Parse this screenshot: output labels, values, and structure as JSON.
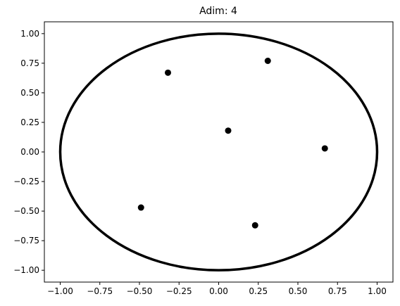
{
  "chart_data": {
    "type": "scatter",
    "title": "Adim: 4",
    "x": [
      0.31,
      -0.32,
      0.06,
      0.67,
      -0.49,
      0.23
    ],
    "values": [
      0.77,
      0.67,
      0.18,
      0.03,
      -0.47,
      -0.62
    ],
    "color": "#000000",
    "shapes": [
      {
        "type": "circle",
        "center": [
          0,
          0
        ],
        "radius": 1,
        "color": "#000000"
      }
    ],
    "xlim": [
      -1.1,
      1.1
    ],
    "ylim": [
      -1.1,
      1.1
    ],
    "xticks": [
      {
        "value": -1,
        "label": "−1.00"
      },
      {
        "value": -0.75,
        "label": "−0.75"
      },
      {
        "value": -0.5,
        "label": "−0.50"
      },
      {
        "value": -0.25,
        "label": "−0.25"
      },
      {
        "value": 0,
        "label": "0.00"
      },
      {
        "value": 0.25,
        "label": "0.25"
      },
      {
        "value": 0.5,
        "label": "0.50"
      },
      {
        "value": 0.75,
        "label": "0.75"
      },
      {
        "value": 1,
        "label": "1.00"
      }
    ],
    "yticks": [
      {
        "value": -1,
        "label": "−1.00"
      },
      {
        "value": -0.75,
        "label": "−0.75"
      },
      {
        "value": -0.5,
        "label": "−0.50"
      },
      {
        "value": -0.25,
        "label": "−0.25"
      },
      {
        "value": 0,
        "label": "0.00"
      },
      {
        "value": 0.25,
        "label": "0.25"
      },
      {
        "value": 0.5,
        "label": "0.50"
      },
      {
        "value": 0.75,
        "label": "0.75"
      },
      {
        "value": 1,
        "label": "1.00"
      }
    ],
    "grid": false
  }
}
